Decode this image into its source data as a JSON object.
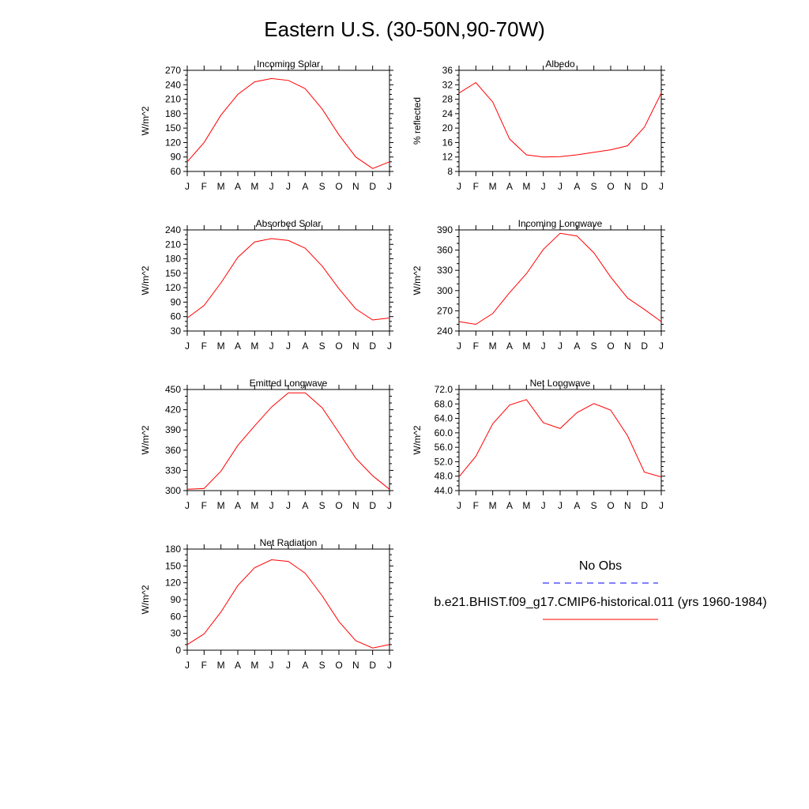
{
  "figure": {
    "title": "Eastern U.S. (30-50N,90-70W)"
  },
  "colors": {
    "model": "#ff0000",
    "obs": "#0000ff"
  },
  "legend": {
    "entries": [
      {
        "label": "No Obs",
        "style": "dashed",
        "color": "#0000ff"
      },
      {
        "label": "b.e21.BHIST.f09_g17.CMIP6-historical.011 (yrs 1960-1984)",
        "style": "solid",
        "color": "#ff0000"
      }
    ]
  },
  "chart_data": [
    {
      "type": "line",
      "title": "Incoming Solar",
      "ylabel": "W/m^2",
      "categories": [
        "J",
        "F",
        "M",
        "A",
        "M",
        "J",
        "J",
        "A",
        "S",
        "O",
        "N",
        "D",
        "J"
      ],
      "ylim": [
        60,
        270
      ],
      "yticks": [
        "60",
        "90",
        "120",
        "150",
        "180",
        "210",
        "240",
        "270"
      ],
      "series": [
        {
          "values": [
            80,
            120,
            177,
            220,
            246,
            253,
            249,
            232,
            190,
            136,
            90,
            66,
            80
          ]
        }
      ]
    },
    {
      "type": "line",
      "title": "Albedo",
      "ylabel": "% reflected",
      "categories": [
        "J",
        "F",
        "M",
        "A",
        "M",
        "J",
        "J",
        "A",
        "S",
        "O",
        "N",
        "D",
        "J"
      ],
      "ylim": [
        8,
        36
      ],
      "yticks": [
        "8",
        "12",
        "16",
        "20",
        "24",
        "28",
        "32",
        "36"
      ],
      "series": [
        {
          "values": [
            29.7,
            32.6,
            27.2,
            17.0,
            12.6,
            12.0,
            12.1,
            12.6,
            13.3,
            14.0,
            15.1,
            20.3,
            29.7
          ]
        }
      ]
    },
    {
      "type": "line",
      "title": "Absorbed Solar",
      "ylabel": "W/m^2",
      "categories": [
        "J",
        "F",
        "M",
        "A",
        "M",
        "J",
        "J",
        "A",
        "S",
        "O",
        "N",
        "D",
        "J"
      ],
      "ylim": [
        30,
        240
      ],
      "yticks": [
        "30",
        "60",
        "90",
        "120",
        "150",
        "180",
        "210",
        "240"
      ],
      "series": [
        {
          "values": [
            57,
            83,
            130,
            183,
            215,
            222,
            218,
            202,
            165,
            118,
            76,
            53,
            57
          ]
        }
      ]
    },
    {
      "type": "line",
      "title": "Incoming Longwave",
      "ylabel": "W/m^2",
      "categories": [
        "J",
        "F",
        "M",
        "A",
        "M",
        "J",
        "J",
        "A",
        "S",
        "O",
        "N",
        "D",
        "J"
      ],
      "ylim": [
        240,
        390
      ],
      "yticks": [
        "240",
        "270",
        "300",
        "330",
        "360",
        "390"
      ],
      "series": [
        {
          "values": [
            254,
            250,
            266,
            297,
            325,
            361,
            385,
            381,
            356,
            320,
            289,
            272,
            254
          ]
        }
      ]
    },
    {
      "type": "line",
      "title": "Emitted Longwave",
      "ylabel": "W/m^2",
      "categories": [
        "J",
        "F",
        "M",
        "A",
        "M",
        "J",
        "J",
        "A",
        "S",
        "O",
        "N",
        "D",
        "J"
      ],
      "ylim": [
        300,
        450
      ],
      "yticks": [
        "300",
        "330",
        "360",
        "390",
        "420",
        "450"
      ],
      "series": [
        {
          "values": [
            302,
            303,
            329,
            367,
            396,
            424,
            445,
            445,
            423,
            386,
            348,
            322,
            302
          ]
        }
      ]
    },
    {
      "type": "line",
      "title": "Net Longwave",
      "ylabel": "W/m^2",
      "categories": [
        "J",
        "F",
        "M",
        "A",
        "M",
        "J",
        "J",
        "A",
        "S",
        "O",
        "N",
        "D",
        "J"
      ],
      "ylim": [
        44,
        72
      ],
      "yticks": [
        "44.0",
        "48.0",
        "52.0",
        "56.0",
        "60.0",
        "64.0",
        "68.0",
        "72.0"
      ],
      "series": [
        {
          "values": [
            47.8,
            53.5,
            62.5,
            67.7,
            69.2,
            62.8,
            61.2,
            65.6,
            68.1,
            66.3,
            59.2,
            49.1,
            47.8
          ]
        }
      ]
    },
    {
      "type": "line",
      "title": "Net Radiation",
      "ylabel": "W/m^2",
      "categories": [
        "J",
        "F",
        "M",
        "A",
        "M",
        "J",
        "J",
        "A",
        "S",
        "O",
        "N",
        "D",
        "J"
      ],
      "ylim": [
        0,
        180
      ],
      "yticks": [
        "0",
        "30",
        "60",
        "90",
        "120",
        "150",
        "180"
      ],
      "series": [
        {
          "values": [
            10,
            29,
            68,
            115,
            147,
            161,
            158,
            137,
            97,
            51,
            17,
            4,
            10
          ]
        }
      ]
    }
  ]
}
